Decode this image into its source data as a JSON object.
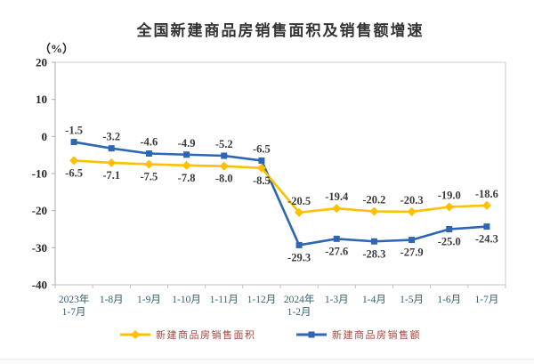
{
  "chart_data": {
    "type": "line",
    "title": "全国新建商品房销售面积及销售额增速",
    "unit_label": "（%）",
    "categories": [
      "2023年\n1-7月",
      "1-8月",
      "1-9月",
      "1-10月",
      "1-11月",
      "1-12月",
      "2024年\n1-2月",
      "1-3月",
      "1-4月",
      "1-5月",
      "1-6月",
      "1-7月"
    ],
    "ylim": [
      -40,
      20
    ],
    "ytick_step": 10,
    "grid": false,
    "legend_position": "bottom",
    "series": [
      {
        "id": "sales-area",
        "name": "新建商品房销售面积",
        "color": "#FFC000",
        "marker": "diamond",
        "values": [
          -6.5,
          -7.1,
          -7.5,
          -7.8,
          -8.0,
          -8.5,
          -20.5,
          -19.4,
          -20.2,
          -20.3,
          -19.0,
          -18.6
        ],
        "label_sides": [
          "below",
          "below",
          "below",
          "below",
          "below",
          "below",
          "above",
          "above",
          "above",
          "above",
          "above",
          "above"
        ]
      },
      {
        "id": "sales-amount",
        "name": "新建商品房销售额",
        "color": "#2D66B5",
        "marker": "square",
        "values": [
          -1.5,
          -3.2,
          -4.6,
          -4.9,
          -5.2,
          -6.5,
          -29.3,
          -27.6,
          -28.3,
          -27.9,
          -25.0,
          -24.3
        ],
        "label_sides": [
          "above",
          "above",
          "above",
          "above",
          "above",
          "above",
          "below",
          "below",
          "below",
          "below",
          "below",
          "below"
        ]
      }
    ],
    "colors": {
      "title_text": "#333333",
      "y_tick_text": "#262626",
      "x_tick_text": "#35606E",
      "data_label_text": "#3A3A3A",
      "legend_text": "#9E4B3F",
      "plot_border": "#DDDDDD",
      "y_axis_line": "#ABABAB",
      "x_axis_line": "#C2C2C2"
    }
  }
}
